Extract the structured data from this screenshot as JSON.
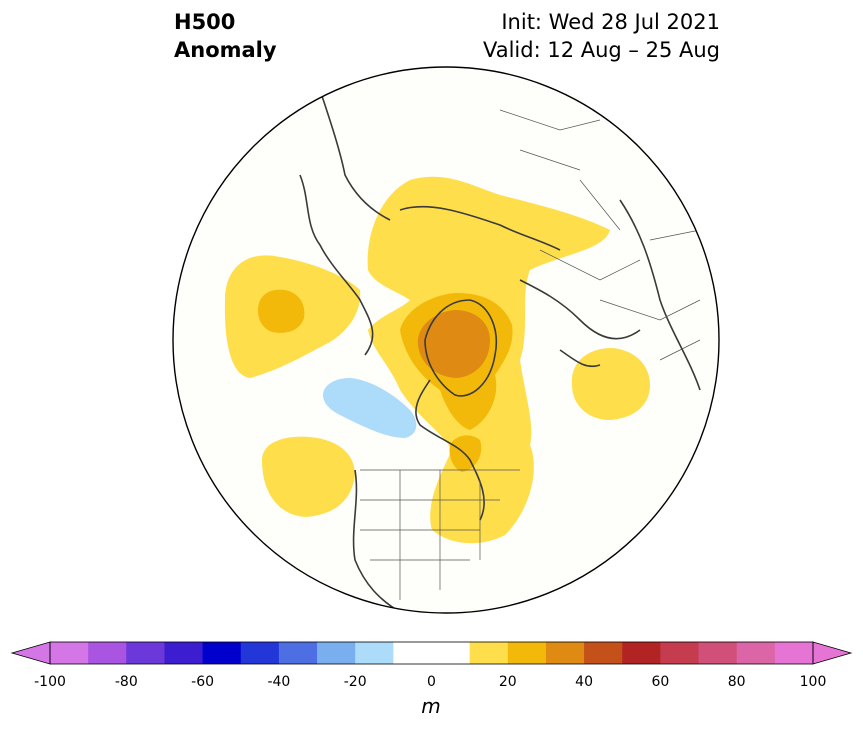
{
  "title": {
    "line1": "H500",
    "line2": "Anomaly",
    "init": "Init: Wed 28 Jul 2021",
    "valid": "Valid: 12 Aug – 25 Aug"
  },
  "colorbar": {
    "unit": "m",
    "ticks": [
      "-100",
      "-80",
      "-60",
      "-40",
      "-20",
      "0",
      "20",
      "40",
      "60",
      "80",
      "100"
    ],
    "levels": [
      -100,
      -90,
      -80,
      -70,
      -60,
      -50,
      -40,
      -30,
      -20,
      -10,
      10,
      20,
      30,
      40,
      50,
      60,
      70,
      80,
      90,
      100
    ],
    "colors": [
      "#d476e6",
      "#a955e1",
      "#6d38d9",
      "#3c1dcf",
      "#0000cd",
      "#2336d7",
      "#4e6fe3",
      "#79afef",
      "#acdcfa",
      "#ffffff",
      "#ffffff",
      "#ffde4c",
      "#f3b90a",
      "#df8a13",
      "#c4501a",
      "#b22424",
      "#c53c4f",
      "#d15079",
      "#db65a6",
      "#e574d5"
    ],
    "under_color": "#d476e6",
    "over_color": "#e574d5"
  },
  "map": {
    "projection": "north-polar-stereographic",
    "background": "#fefefb",
    "coast_color": "#3a3a3a"
  }
}
